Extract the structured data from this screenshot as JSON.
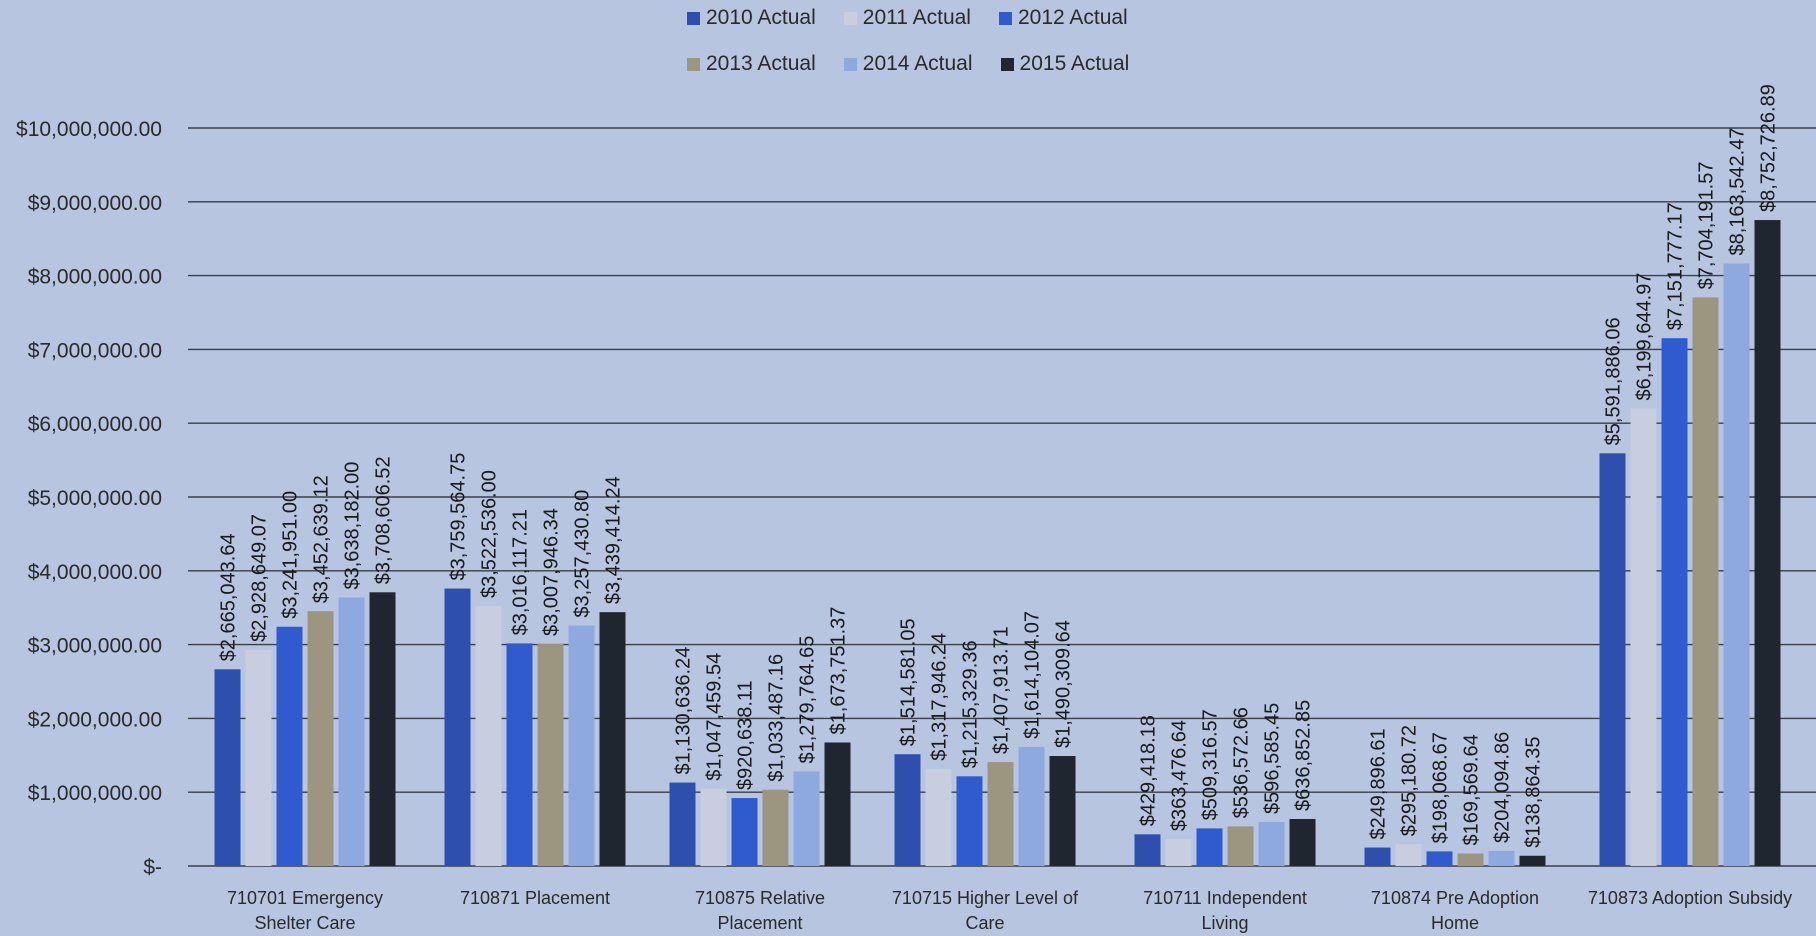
{
  "chart_data": {
    "type": "bar",
    "title": "",
    "xlabel": "",
    "ylabel": "",
    "ylim": [
      0,
      10000000
    ],
    "yticks": [
      {
        "value": 0,
        "label": "$-"
      },
      {
        "value": 1000000,
        "label": "$1,000,000.00"
      },
      {
        "value": 2000000,
        "label": "$2,000,000.00"
      },
      {
        "value": 3000000,
        "label": "$3,000,000.00"
      },
      {
        "value": 4000000,
        "label": "$4,000,000.00"
      },
      {
        "value": 5000000,
        "label": "$5,000,000.00"
      },
      {
        "value": 6000000,
        "label": "$6,000,000.00"
      },
      {
        "value": 7000000,
        "label": "$7,000,000.00"
      },
      {
        "value": 8000000,
        "label": "$8,000,000.00"
      },
      {
        "value": 9000000,
        "label": "$9,000,000.00"
      },
      {
        "value": 10000000,
        "label": "$10,000,000.00"
      }
    ],
    "grid": true,
    "legend_position": "top-center",
    "categories": [
      [
        "710701  Emergency",
        "Shelter Care"
      ],
      [
        "710871  Placement"
      ],
      [
        "710875  Relative",
        "Placement"
      ],
      [
        "710715  Higher Level of",
        "Care"
      ],
      [
        "710711  Independent",
        "Living"
      ],
      [
        "710874  Pre Adoption",
        "Home"
      ],
      [
        "710873  Adoption Subsidy"
      ]
    ],
    "series": [
      {
        "name": "2010 Actual",
        "color": "#2e4fae",
        "values": [
          2665043.64,
          3759564.75,
          1130636.24,
          1514581.05,
          429418.18,
          249896.61,
          5591886.06
        ],
        "labels": [
          "$2,665,043.64",
          "$3,759,564.75",
          "$1,130,636.24",
          "$1,514,581.05",
          "$429,418.18",
          "$249,896.61",
          "$5,591,886.06"
        ]
      },
      {
        "name": "2011 Actual",
        "color": "#c9cde0",
        "values": [
          2928649.07,
          3522536.0,
          1047459.54,
          1317946.24,
          363476.64,
          295180.72,
          6199644.97
        ],
        "labels": [
          "$2,928,649.07",
          "$3,522,536.00",
          "$1,047,459.54",
          "$1,317,946.24",
          "$363,476.64",
          "$295,180.72",
          "$6,199,644.97"
        ]
      },
      {
        "name": "2012 Actual",
        "color": "#2f5bcf",
        "values": [
          3241951.0,
          3016117.21,
          920638.11,
          1215329.36,
          509316.57,
          198068.67,
          7151777.17
        ],
        "labels": [
          "$3,241,951.00",
          "$3,016,117.21",
          "$920,638.11",
          "$1,215,329.36",
          "$509,316.57",
          "$198,068.67",
          "$7,151,777.17"
        ]
      },
      {
        "name": "2013 Actual",
        "color": "#9c9580",
        "values": [
          3452639.12,
          3007946.34,
          1033487.16,
          1407913.71,
          536572.66,
          169569.64,
          7704191.57
        ],
        "labels": [
          "$3,452,639.12",
          "$3,007,946.34",
          "$1,033,487.16",
          "$1,407,913.71",
          "$536,572.66",
          "$169,569.64",
          "$7,704,191.57"
        ]
      },
      {
        "name": "2014 Actual",
        "color": "#8ea9e0",
        "values": [
          3638182.0,
          3257430.8,
          1279764.65,
          1614104.07,
          596585.45,
          204094.86,
          8163542.47
        ],
        "labels": [
          "$3,638,182.00",
          "$3,257,430.80",
          "$1,279,764.65",
          "$1,614,104.07",
          "$596,585.45",
          "$204,094.86",
          "$8,163,542.47"
        ]
      },
      {
        "name": "2015 Actual",
        "color": "#1f2630",
        "values": [
          3708606.52,
          3439414.24,
          1673751.37,
          1490309.64,
          636852.85,
          138864.35,
          8752726.89
        ],
        "labels": [
          "$3,708,606.52",
          "$3,439,414.24",
          "$1,673,751.37",
          "$1,490,309.64",
          "$636,852.85",
          "$138,864.35",
          "$8,752,726.89"
        ]
      }
    ]
  }
}
